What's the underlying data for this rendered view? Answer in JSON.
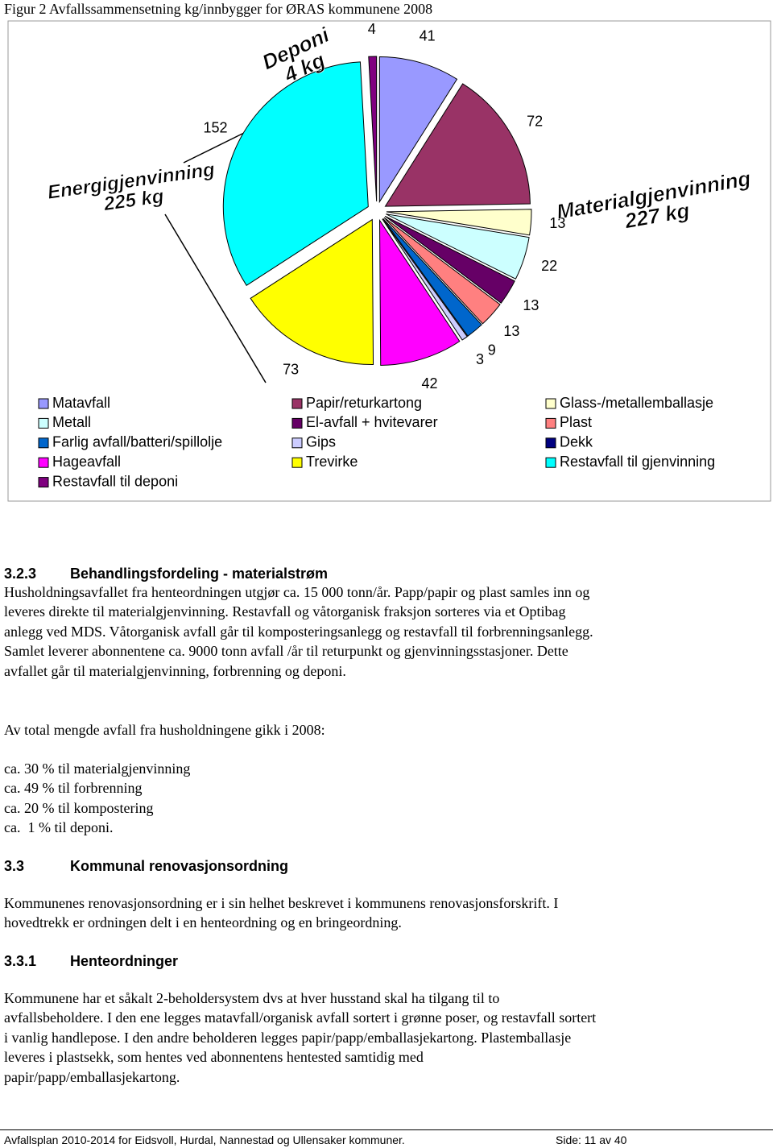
{
  "chart_data": {
    "type": "pie",
    "title": "Figur 2 Avfallssammensetning kg/innbygger for ØRAS kommunene 2008",
    "categories": [
      "Matavfall",
      "Papir/returkartong",
      "Glass-/metallemballasje",
      "Metall",
      "El-avfall + hvitevarer",
      "Plast",
      "Farlig avfall/batteri/spillolje",
      "Gips",
      "Dekk",
      "Hageavfall",
      "Trevirke",
      "Restavfall til gjenvinning",
      "Restavfall til deponi"
    ],
    "values": [
      41,
      72,
      13,
      22,
      13,
      13,
      9,
      3,
      null,
      42,
      73,
      152,
      4
    ],
    "colors": [
      "#9999ff",
      "#993366",
      "#ffffcc",
      "#ccffff",
      "#660066",
      "#ff8080",
      "#0066cc",
      "#ccccff",
      "#000080",
      "#ff00ff",
      "#ffff00",
      "#00ffff",
      "#800080"
    ],
    "annotations": [
      [
        "Deponi",
        "4 kg"
      ],
      [
        "Energigjenvinning",
        "225 kg"
      ],
      [
        "Materialgjenvinning",
        "227 kg"
      ]
    ]
  },
  "sections": [
    {
      "number": "3.2.3",
      "title": "Behandlingsfordeling - materialstrøm",
      "paragraphs": [
        [
          "Husholdningsavfallet fra henteordningen utgjør ca. 15 000 tonn/år. Papp/papir og plast samles inn og",
          "leveres direkte til materialgjenvinning. Restavfall og våtorganisk fraksjon sorteres via et Optibag",
          "anlegg ved MDS. Våtorganisk avfall går til komposteringsanlegg og restavfall til forbrenningsanlegg.",
          "Samlet leverer abonnentene ca. 9000 tonn avfall /år til returpunkt og gjenvinningsstasjoner. Dette",
          "avfallet går til materialgjenvinning, forbrenning og deponi."
        ],
        [
          "Av total mengde avfall fra husholdningene gikk i 2008:"
        ],
        [
          "ca. 30 % til materialgjenvinning",
          "ca. 49 % til forbrenning",
          "ca. 20 % til kompostering",
          "ca.  1 % til deponi."
        ]
      ]
    },
    {
      "number": "3.3",
      "title": "Kommunal renovasjonsordning",
      "paragraphs": [
        [
          "Kommunenes renovasjonsordning er i sin helhet beskrevet i kommunens renovasjonsforskrift. I",
          "hovedtrekk er ordningen delt i en henteordning og en bringeordning."
        ]
      ]
    },
    {
      "number": "3.3.1",
      "title": "Henteordninger",
      "paragraphs": [
        [
          "Kommunene har et såkalt 2-beholdersystem dvs at hver husstand skal ha tilgang til to",
          "avfallsbeholdere. I den ene legges matavfall/organisk avfall sortert i grønne poser, og restavfall sortert",
          "i vanlig handlepose. I den andre beholderen legges papir/papp/emballasjekartong. Plastemballasje",
          "leveres i plastsekk, som hentes ved abonnentens hentested samtidig med",
          "papir/papp/emballasjekartong."
        ]
      ]
    }
  ],
  "footer": {
    "left": "Avfallsplan 2010-2014 for Eidsvoll, Hurdal, Nannestad og Ullensaker kommuner.",
    "right": "Side: 11 av 40"
  }
}
